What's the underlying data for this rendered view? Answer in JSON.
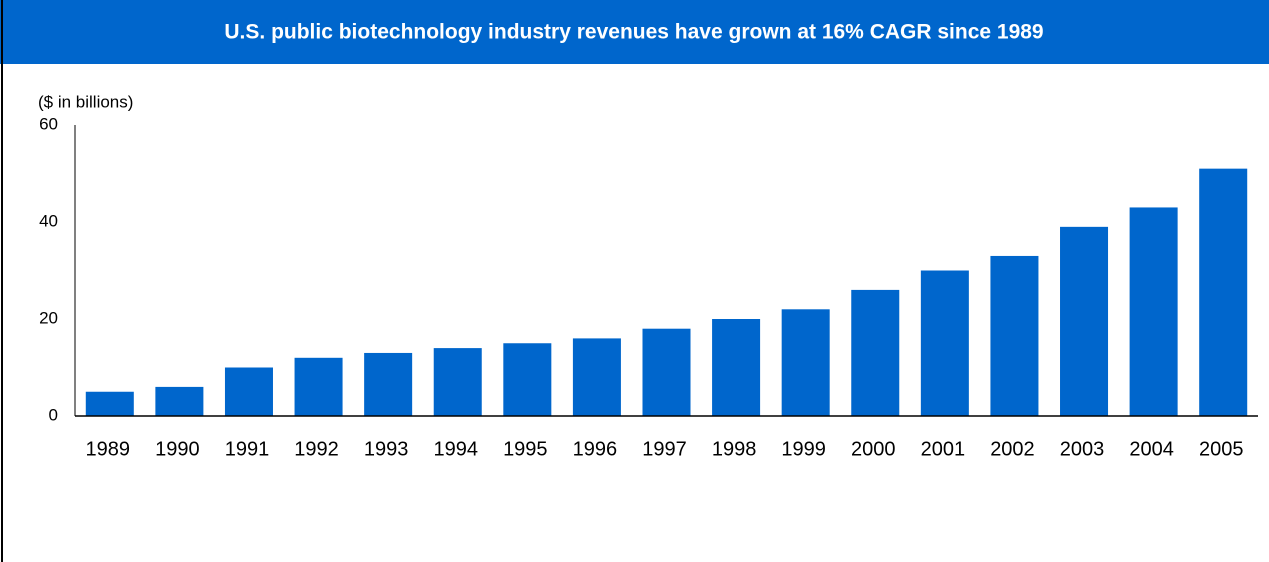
{
  "chart_data": {
    "type": "bar",
    "title": "U.S. public biotechnology industry revenues have grown at 16% CAGR since 1989",
    "y_label": "($ in billions)",
    "categories": [
      "1989",
      "1990",
      "1991",
      "1992",
      "1993",
      "1994",
      "1995",
      "1996",
      "1997",
      "1998",
      "1999",
      "2000",
      "2001",
      "2002",
      "2003",
      "2004",
      "2005"
    ],
    "values": [
      5,
      6,
      10,
      12,
      13,
      14,
      15,
      16,
      18,
      20,
      22,
      26,
      30,
      33,
      39,
      43,
      51
    ],
    "color": "#0066cc",
    "ylim": [
      0,
      60
    ],
    "yticks": [
      0,
      20,
      40,
      60
    ],
    "grid": false
  }
}
